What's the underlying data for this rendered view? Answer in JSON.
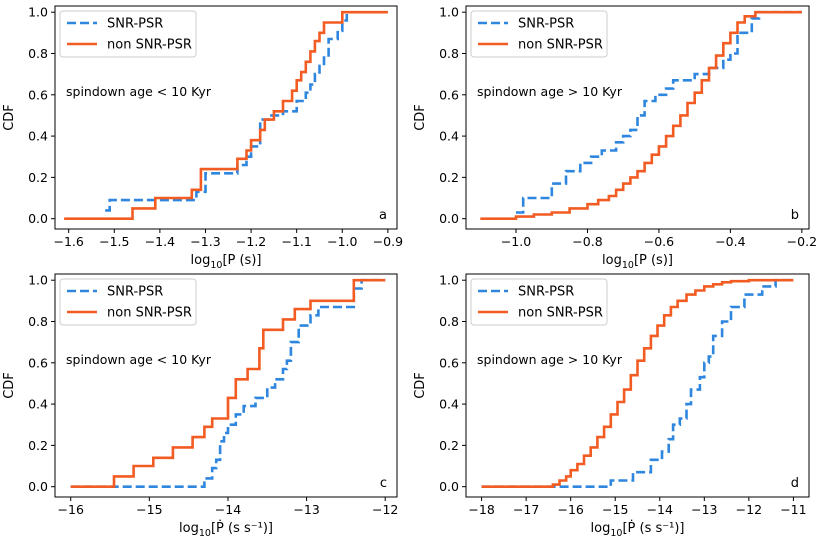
{
  "chart_data": [
    {
      "id": "a",
      "type": "line",
      "drawstyle": "steps",
      "panel_letter": "a",
      "annotation": "spindown age < 10 Kyr",
      "ylabel": "CDF",
      "xlabel_base": "log",
      "xlabel_sub": "10",
      "xlabel_rest": "[P (s)]",
      "xlim": [
        -1.63,
        -0.88
      ],
      "ylim": [
        -0.05,
        1.03
      ],
      "xticks": [
        -1.6,
        -1.5,
        -1.4,
        -1.3,
        -1.2,
        -1.1,
        -1.0,
        -0.9
      ],
      "xticklabels": [
        "−1.6",
        "−1.5",
        "−1.4",
        "−1.3",
        "−1.2",
        "−1.1",
        "−1.0",
        "−0.9"
      ],
      "yticks": [
        0.0,
        0.2,
        0.4,
        0.6,
        0.8,
        1.0
      ],
      "yticklabels": [
        "0.0",
        "0.2",
        "0.4",
        "0.6",
        "0.8",
        "1.0"
      ],
      "legend": [
        "SNR-PSR",
        "non SNR-PSR"
      ],
      "series": [
        {
          "name": "SNR-PSR",
          "color": "#2e86de",
          "dash": true,
          "x": [
            -1.52,
            -1.51,
            -1.49,
            -1.44,
            -1.36,
            -1.32,
            -1.3,
            -1.23,
            -1.21,
            -1.2,
            -1.18,
            -1.16,
            -1.13,
            -1.1,
            -1.08,
            -1.07,
            -1.06,
            -1.05,
            -1.04,
            -1.03,
            -1.01,
            -1.0,
            -0.99
          ],
          "y": [
            0.04,
            0.09,
            0.09,
            0.09,
            0.09,
            0.13,
            0.22,
            0.26,
            0.3,
            0.35,
            0.48,
            0.5,
            0.52,
            0.57,
            0.61,
            0.65,
            0.7,
            0.74,
            0.78,
            0.87,
            0.91,
            0.96,
            1.0
          ]
        },
        {
          "name": "non SNR-PSR",
          "color": "#f25c22",
          "dash": false,
          "x": [
            -1.61,
            -1.46,
            -1.41,
            -1.33,
            -1.31,
            -1.23,
            -1.21,
            -1.2,
            -1.18,
            -1.17,
            -1.15,
            -1.13,
            -1.11,
            -1.1,
            -1.09,
            -1.08,
            -1.07,
            -1.06,
            -1.05,
            -1.04,
            -1.03,
            -1.0,
            -0.99
          ],
          "y": [
            0.0,
            0.05,
            0.1,
            0.14,
            0.24,
            0.29,
            0.33,
            0.38,
            0.43,
            0.48,
            0.52,
            0.57,
            0.62,
            0.67,
            0.71,
            0.76,
            0.81,
            0.86,
            0.9,
            0.95,
            0.95,
            1.0,
            1.0
          ],
          "end_x": -0.9
        }
      ]
    },
    {
      "id": "b",
      "type": "line",
      "drawstyle": "steps",
      "panel_letter": "b",
      "annotation": "spindown age > 10 Kyr",
      "ylabel": "CDF",
      "xlabel_base": "log",
      "xlabel_sub": "10",
      "xlabel_rest": "[P (s)]",
      "xlim": [
        -1.14,
        -0.18
      ],
      "ylim": [
        -0.05,
        1.03
      ],
      "xticks": [
        -1.0,
        -0.8,
        -0.6,
        -0.4,
        -0.2
      ],
      "xticklabels": [
        "−1.0",
        "−0.8",
        "−0.6",
        "−0.4",
        "−0.2"
      ],
      "yticks": [
        0.0,
        0.2,
        0.4,
        0.6,
        0.8,
        1.0
      ],
      "yticklabels": [
        "0.0",
        "0.2",
        "0.4",
        "0.6",
        "0.8",
        "1.0"
      ],
      "legend": [
        "SNR-PSR",
        "non SNR-PSR"
      ],
      "series": [
        {
          "name": "SNR-PSR",
          "color": "#2e86de",
          "dash": true,
          "x": [
            -1.0,
            -0.98,
            -0.9,
            -0.86,
            -0.82,
            -0.79,
            -0.76,
            -0.72,
            -0.7,
            -0.68,
            -0.66,
            -0.64,
            -0.61,
            -0.58,
            -0.56,
            -0.5,
            -0.46,
            -0.42,
            -0.4,
            -0.38,
            -0.34,
            -0.32,
            -0.3
          ],
          "y": [
            0.03,
            0.1,
            0.17,
            0.23,
            0.27,
            0.3,
            0.33,
            0.37,
            0.4,
            0.43,
            0.5,
            0.57,
            0.6,
            0.63,
            0.67,
            0.7,
            0.73,
            0.77,
            0.8,
            0.9,
            0.97,
            1.0,
            1.0
          ],
          "end_x": -0.2
        },
        {
          "name": "non SNR-PSR",
          "color": "#f25c22",
          "dash": false,
          "x": [
            -1.1,
            -1.0,
            -0.95,
            -0.9,
            -0.85,
            -0.8,
            -0.77,
            -0.74,
            -0.72,
            -0.7,
            -0.68,
            -0.66,
            -0.64,
            -0.62,
            -0.6,
            -0.58,
            -0.56,
            -0.54,
            -0.52,
            -0.5,
            -0.48,
            -0.46,
            -0.44,
            -0.42,
            -0.4,
            -0.38,
            -0.36,
            -0.33,
            -0.31
          ],
          "y": [
            0.0,
            0.01,
            0.02,
            0.03,
            0.05,
            0.07,
            0.09,
            0.11,
            0.14,
            0.17,
            0.2,
            0.23,
            0.27,
            0.31,
            0.35,
            0.4,
            0.45,
            0.5,
            0.56,
            0.61,
            0.67,
            0.73,
            0.79,
            0.85,
            0.9,
            0.95,
            0.98,
            1.0,
            1.0
          ],
          "end_x": -0.2
        }
      ]
    },
    {
      "id": "c",
      "type": "line",
      "drawstyle": "steps",
      "panel_letter": "c",
      "annotation": "spindown age < 10 Kyr",
      "ylabel": "CDF",
      "xlabel_base": "log",
      "xlabel_sub": "10",
      "xlabel_rest": "[Ṗ (s s⁻¹)]",
      "xlim": [
        -16.2,
        -11.85
      ],
      "ylim": [
        -0.05,
        1.03
      ],
      "xticks": [
        -16,
        -15,
        -14,
        -13,
        -12
      ],
      "xticklabels": [
        "−16",
        "−15",
        "−14",
        "−13",
        "−12"
      ],
      "yticks": [
        0.0,
        0.2,
        0.4,
        0.6,
        0.8,
        1.0
      ],
      "yticklabels": [
        "0.0",
        "0.2",
        "0.4",
        "0.6",
        "0.8",
        "1.0"
      ],
      "legend": [
        "SNR-PSR",
        "non SNR-PSR"
      ],
      "series": [
        {
          "name": "SNR-PSR",
          "color": "#2e86de",
          "dash": true,
          "x": [
            -16.0,
            -14.3,
            -14.2,
            -14.15,
            -14.1,
            -14.05,
            -14.0,
            -13.9,
            -13.8,
            -13.65,
            -13.5,
            -13.4,
            -13.3,
            -13.25,
            -13.2,
            -13.1,
            -12.95,
            -12.85,
            -12.4,
            -12.3
          ],
          "y": [
            0.0,
            0.04,
            0.09,
            0.13,
            0.22,
            0.26,
            0.3,
            0.35,
            0.39,
            0.43,
            0.48,
            0.52,
            0.57,
            0.61,
            0.7,
            0.78,
            0.83,
            0.87,
            0.96,
            1.0
          ],
          "end_x": -12.0
        },
        {
          "name": "non SNR-PSR",
          "color": "#f25c22",
          "dash": false,
          "x": [
            -16.0,
            -15.45,
            -15.2,
            -14.95,
            -14.7,
            -14.45,
            -14.3,
            -14.2,
            -14.0,
            -13.9,
            -13.75,
            -13.6,
            -13.55,
            -13.3,
            -13.15,
            -12.95,
            -12.4
          ],
          "y": [
            0.0,
            0.05,
            0.1,
            0.14,
            0.19,
            0.24,
            0.29,
            0.33,
            0.43,
            0.52,
            0.57,
            0.67,
            0.76,
            0.81,
            0.86,
            0.9,
            1.0
          ],
          "end_x": -12.0
        }
      ]
    },
    {
      "id": "d",
      "type": "line",
      "drawstyle": "steps",
      "panel_letter": "d",
      "annotation": "spindown age > 10 Kyr",
      "ylabel": "CDF",
      "xlabel_base": "log",
      "xlabel_sub": "10",
      "xlabel_rest": "[Ṗ (s s⁻¹)]",
      "xlim": [
        -18.35,
        -10.65
      ],
      "ylim": [
        -0.05,
        1.03
      ],
      "xticks": [
        -18,
        -17,
        -16,
        -15,
        -14,
        -13,
        -12,
        -11
      ],
      "xticklabels": [
        "−18",
        "−17",
        "−16",
        "−15",
        "−14",
        "−13",
        "−12",
        "−11"
      ],
      "yticks": [
        0.0,
        0.2,
        0.4,
        0.6,
        0.8,
        1.0
      ],
      "yticklabels": [
        "0.0",
        "0.2",
        "0.4",
        "0.6",
        "0.8",
        "1.0"
      ],
      "legend": [
        "SNR-PSR",
        "non SNR-PSR"
      ],
      "series": [
        {
          "name": "SNR-PSR",
          "color": "#2e86de",
          "dash": true,
          "x": [
            -18.0,
            -15.1,
            -14.6,
            -14.2,
            -13.95,
            -13.8,
            -13.7,
            -13.55,
            -13.4,
            -13.3,
            -13.1,
            -13.0,
            -12.9,
            -12.8,
            -12.6,
            -12.4,
            -12.1,
            -11.7,
            -11.4
          ],
          "y": [
            0.0,
            0.03,
            0.07,
            0.13,
            0.17,
            0.23,
            0.3,
            0.33,
            0.4,
            0.47,
            0.53,
            0.6,
            0.63,
            0.73,
            0.8,
            0.87,
            0.93,
            0.97,
            1.0
          ],
          "end_x": -11.0
        },
        {
          "name": "non SNR-PSR",
          "color": "#f25c22",
          "dash": false,
          "x": [
            -18.0,
            -16.4,
            -16.25,
            -16.1,
            -16.0,
            -15.85,
            -15.7,
            -15.55,
            -15.4,
            -15.25,
            -15.1,
            -14.95,
            -14.8,
            -14.65,
            -14.5,
            -14.35,
            -14.2,
            -14.05,
            -13.9,
            -13.75,
            -13.6,
            -13.4,
            -13.2,
            -13.0,
            -12.8,
            -12.6,
            -12.4,
            -12.0,
            -11.6
          ],
          "y": [
            0.0,
            0.01,
            0.03,
            0.05,
            0.08,
            0.11,
            0.15,
            0.19,
            0.24,
            0.29,
            0.35,
            0.41,
            0.47,
            0.54,
            0.61,
            0.67,
            0.73,
            0.78,
            0.83,
            0.87,
            0.9,
            0.93,
            0.95,
            0.97,
            0.98,
            0.99,
            0.995,
            1.0,
            1.0
          ],
          "end_x": -11.0
        }
      ]
    }
  ]
}
